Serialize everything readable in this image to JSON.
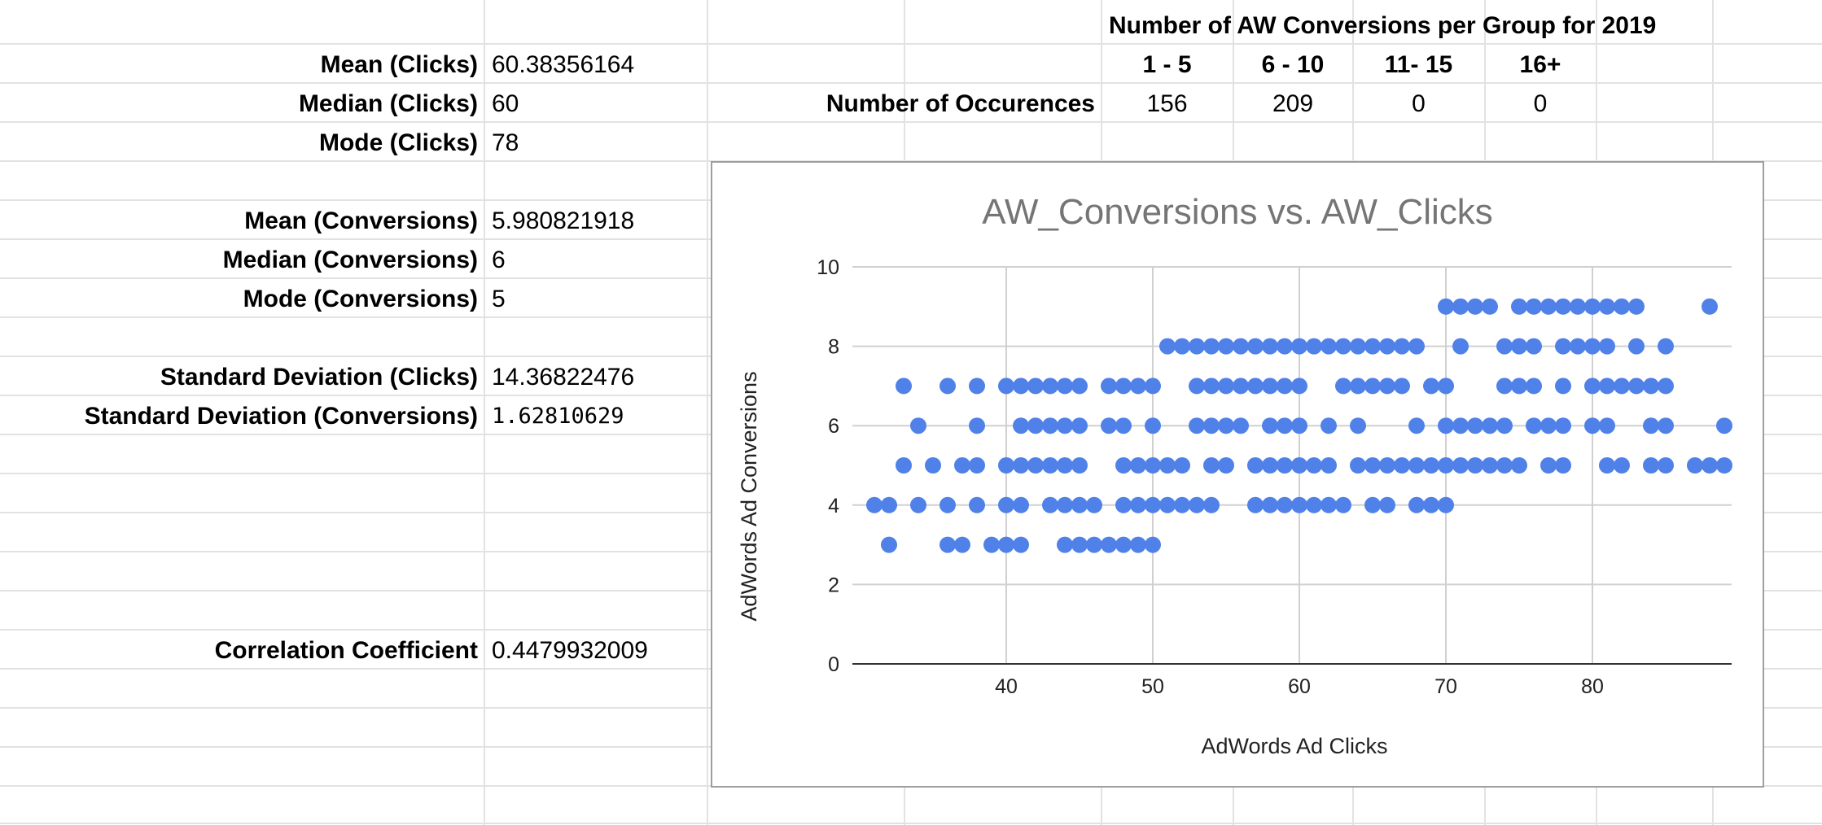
{
  "stats": {
    "rows": [
      {
        "label": "Mean (Clicks)",
        "value": "60.38356164"
      },
      {
        "label": "Median (Clicks)",
        "value": "60"
      },
      {
        "label": "Mode (Clicks)",
        "value": "78"
      },
      {
        "label": "Mean (Conversions)",
        "value": "5.980821918"
      },
      {
        "label": "Median (Conversions)",
        "value": "6"
      },
      {
        "label": "Mode (Conversions)",
        "value": "5"
      },
      {
        "label": "Standard Deviation (Clicks)",
        "value": "14.36822476"
      },
      {
        "label": "Standard Deviation (Conversions)",
        "value": "1.62810629"
      },
      {
        "label": "Correlation Coefficient",
        "value": "0.4479932009"
      }
    ]
  },
  "groups_table": {
    "title": "Number of AW Conversions per Group for 2019",
    "row_label": "Number of Occurences",
    "headers": [
      "1 - 5",
      "6 - 10",
      "11- 15",
      "16+"
    ],
    "counts": [
      "156",
      "209",
      "0",
      "0"
    ]
  },
  "colors": {
    "point": "#4f81e8",
    "grid": "#d0d0d0",
    "axis": "#333333",
    "title": "#757575",
    "label": "#222222",
    "cell_border": "#e2e2e2",
    "chart_border": "#9e9e9e"
  },
  "chart_data": {
    "type": "scatter",
    "title": "AW_Conversions vs. AW_Clicks",
    "xlabel": "AdWords Ad Clicks",
    "ylabel": "AdWords Ad Conversions",
    "xlim": [
      29.5,
      89.5
    ],
    "ylim": [
      0,
      10
    ],
    "xticks": [
      40,
      50,
      60,
      70,
      80
    ],
    "yticks": [
      0,
      2,
      4,
      6,
      8,
      10
    ],
    "grid": true,
    "legend": "none",
    "series": [
      {
        "points": [
          [
            31,
            4
          ],
          [
            32,
            4
          ],
          [
            34,
            4
          ],
          [
            36,
            4
          ],
          [
            38,
            4
          ],
          [
            40,
            4
          ],
          [
            41,
            4
          ],
          [
            43,
            4
          ],
          [
            44,
            4
          ],
          [
            45,
            4
          ],
          [
            46,
            4
          ],
          [
            48,
            4
          ],
          [
            49,
            4
          ],
          [
            50,
            4
          ],
          [
            51,
            4
          ],
          [
            52,
            4
          ],
          [
            53,
            4
          ],
          [
            54,
            4
          ],
          [
            57,
            4
          ],
          [
            58,
            4
          ],
          [
            59,
            4
          ],
          [
            60,
            4
          ],
          [
            61,
            4
          ],
          [
            62,
            4
          ],
          [
            63,
            4
          ],
          [
            65,
            4
          ],
          [
            66,
            4
          ],
          [
            68,
            4
          ],
          [
            69,
            4
          ],
          [
            70,
            4
          ],
          [
            32,
            3
          ],
          [
            36,
            3
          ],
          [
            37,
            3
          ],
          [
            39,
            3
          ],
          [
            40,
            3
          ],
          [
            41,
            3
          ],
          [
            44,
            3
          ],
          [
            45,
            3
          ],
          [
            46,
            3
          ],
          [
            47,
            3
          ],
          [
            48,
            3
          ],
          [
            49,
            3
          ],
          [
            50,
            3
          ],
          [
            33,
            5
          ],
          [
            35,
            5
          ],
          [
            37,
            5
          ],
          [
            38,
            5
          ],
          [
            40,
            5
          ],
          [
            41,
            5
          ],
          [
            42,
            5
          ],
          [
            43,
            5
          ],
          [
            44,
            5
          ],
          [
            45,
            5
          ],
          [
            48,
            5
          ],
          [
            49,
            5
          ],
          [
            50,
            5
          ],
          [
            51,
            5
          ],
          [
            52,
            5
          ],
          [
            54,
            5
          ],
          [
            55,
            5
          ],
          [
            57,
            5
          ],
          [
            58,
            5
          ],
          [
            59,
            5
          ],
          [
            60,
            5
          ],
          [
            61,
            5
          ],
          [
            62,
            5
          ],
          [
            64,
            5
          ],
          [
            65,
            5
          ],
          [
            66,
            5
          ],
          [
            67,
            5
          ],
          [
            68,
            5
          ],
          [
            69,
            5
          ],
          [
            70,
            5
          ],
          [
            71,
            5
          ],
          [
            72,
            5
          ],
          [
            73,
            5
          ],
          [
            74,
            5
          ],
          [
            75,
            5
          ],
          [
            77,
            5
          ],
          [
            78,
            5
          ],
          [
            81,
            5
          ],
          [
            82,
            5
          ],
          [
            84,
            5
          ],
          [
            85,
            5
          ],
          [
            87,
            5
          ],
          [
            88,
            5
          ],
          [
            89,
            5
          ],
          [
            34,
            6
          ],
          [
            38,
            6
          ],
          [
            41,
            6
          ],
          [
            42,
            6
          ],
          [
            43,
            6
          ],
          [
            44,
            6
          ],
          [
            45,
            6
          ],
          [
            47,
            6
          ],
          [
            48,
            6
          ],
          [
            50,
            6
          ],
          [
            53,
            6
          ],
          [
            54,
            6
          ],
          [
            55,
            6
          ],
          [
            56,
            6
          ],
          [
            58,
            6
          ],
          [
            59,
            6
          ],
          [
            60,
            6
          ],
          [
            62,
            6
          ],
          [
            64,
            6
          ],
          [
            68,
            6
          ],
          [
            70,
            6
          ],
          [
            71,
            6
          ],
          [
            72,
            6
          ],
          [
            73,
            6
          ],
          [
            74,
            6
          ],
          [
            76,
            6
          ],
          [
            77,
            6
          ],
          [
            78,
            6
          ],
          [
            80,
            6
          ],
          [
            81,
            6
          ],
          [
            84,
            6
          ],
          [
            85,
            6
          ],
          [
            89,
            6
          ],
          [
            33,
            7
          ],
          [
            36,
            7
          ],
          [
            38,
            7
          ],
          [
            40,
            7
          ],
          [
            41,
            7
          ],
          [
            42,
            7
          ],
          [
            43,
            7
          ],
          [
            44,
            7
          ],
          [
            45,
            7
          ],
          [
            47,
            7
          ],
          [
            48,
            7
          ],
          [
            49,
            7
          ],
          [
            50,
            7
          ],
          [
            53,
            7
          ],
          [
            54,
            7
          ],
          [
            55,
            7
          ],
          [
            56,
            7
          ],
          [
            57,
            7
          ],
          [
            58,
            7
          ],
          [
            59,
            7
          ],
          [
            60,
            7
          ],
          [
            63,
            7
          ],
          [
            64,
            7
          ],
          [
            65,
            7
          ],
          [
            66,
            7
          ],
          [
            67,
            7
          ],
          [
            69,
            7
          ],
          [
            70,
            7
          ],
          [
            74,
            7
          ],
          [
            75,
            7
          ],
          [
            76,
            7
          ],
          [
            78,
            7
          ],
          [
            80,
            7
          ],
          [
            81,
            7
          ],
          [
            82,
            7
          ],
          [
            83,
            7
          ],
          [
            84,
            7
          ],
          [
            85,
            7
          ],
          [
            51,
            8
          ],
          [
            52,
            8
          ],
          [
            53,
            8
          ],
          [
            54,
            8
          ],
          [
            55,
            8
          ],
          [
            56,
            8
          ],
          [
            57,
            8
          ],
          [
            58,
            8
          ],
          [
            59,
            8
          ],
          [
            60,
            8
          ],
          [
            61,
            8
          ],
          [
            62,
            8
          ],
          [
            63,
            8
          ],
          [
            64,
            8
          ],
          [
            65,
            8
          ],
          [
            66,
            8
          ],
          [
            67,
            8
          ],
          [
            68,
            8
          ],
          [
            71,
            8
          ],
          [
            74,
            8
          ],
          [
            75,
            8
          ],
          [
            76,
            8
          ],
          [
            78,
            8
          ],
          [
            79,
            8
          ],
          [
            80,
            8
          ],
          [
            81,
            8
          ],
          [
            83,
            8
          ],
          [
            85,
            8
          ],
          [
            70,
            9
          ],
          [
            71,
            9
          ],
          [
            72,
            9
          ],
          [
            73,
            9
          ],
          [
            75,
            9
          ],
          [
            76,
            9
          ],
          [
            77,
            9
          ],
          [
            78,
            9
          ],
          [
            79,
            9
          ],
          [
            80,
            9
          ],
          [
            81,
            9
          ],
          [
            82,
            9
          ],
          [
            83,
            9
          ],
          [
            88,
            9
          ]
        ]
      }
    ]
  }
}
